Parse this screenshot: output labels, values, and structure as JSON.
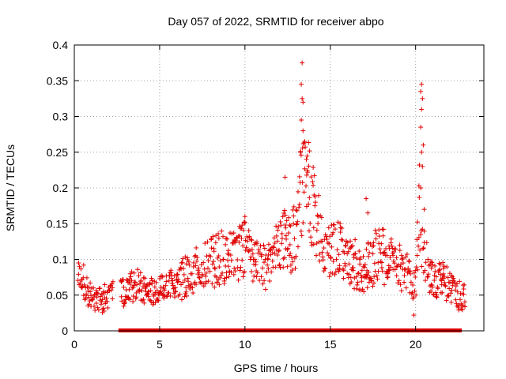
{
  "chart_data": {
    "type": "scatter",
    "title": "Day 057 of 2022, SRMTID for receiver abpo",
    "xlabel": "GPS time / hours",
    "ylabel": "SRMTID / TECUs",
    "xlim": [
      0,
      24
    ],
    "ylim": [
      0,
      0.4
    ],
    "xticks": [
      0,
      5,
      10,
      15,
      20
    ],
    "xtick_labels": [
      "0",
      "5",
      "10",
      "15",
      "20"
    ],
    "yticks": [
      0,
      0.05,
      0.1,
      0.15,
      0.2,
      0.25,
      0.3,
      0.35,
      0.4
    ],
    "ytick_labels": [
      "0",
      "0.05",
      "0.1",
      "0.15",
      "0.2",
      "0.25",
      "0.3",
      "0.35",
      "0.4"
    ],
    "grid": true,
    "legend": "none",
    "marker_color": "#e00000",
    "series": [
      {
        "name": "SRMTID",
        "marker": "plus",
        "profile_x": [
          0.1,
          0.5,
          0.8,
          1.2,
          1.6,
          2.0,
          2.5,
          3.0,
          3.5,
          4.0,
          4.5,
          5.0,
          5.5,
          6.0,
          6.5,
          7.0,
          7.5,
          8.0,
          8.5,
          9.0,
          9.5,
          10.0,
          10.5,
          11.0,
          11.5,
          12.0,
          12.5,
          13.0,
          13.3,
          13.6,
          14.0,
          14.5,
          15.0,
          15.5,
          16.0,
          16.5,
          17.0,
          17.5,
          18.0,
          18.5,
          19.0,
          19.5,
          19.8,
          20.0,
          20.2,
          20.5,
          21.0,
          21.5,
          22.0,
          22.5,
          22.9
        ],
        "profile_y": [
          0.08,
          0.07,
          0.05,
          0.045,
          0.04,
          0.05,
          0.05,
          0.055,
          0.06,
          0.06,
          0.055,
          0.06,
          0.07,
          0.06,
          0.075,
          0.08,
          0.09,
          0.1,
          0.1,
          0.1,
          0.11,
          0.12,
          0.1,
          0.09,
          0.1,
          0.13,
          0.12,
          0.13,
          0.19,
          0.22,
          0.17,
          0.13,
          0.11,
          0.12,
          0.1,
          0.09,
          0.08,
          0.1,
          0.11,
          0.1,
          0.09,
          0.08,
          0.07,
          0.06,
          0.18,
          0.1,
          0.07,
          0.07,
          0.06,
          0.05,
          0.045
        ],
        "peaks": [
          {
            "x": 13.35,
            "y": 0.375
          },
          {
            "x": 13.3,
            "y": 0.345
          },
          {
            "x": 13.35,
            "y": 0.325
          },
          {
            "x": 13.4,
            "y": 0.32
          },
          {
            "x": 13.3,
            "y": 0.295
          },
          {
            "x": 13.4,
            "y": 0.28
          },
          {
            "x": 13.5,
            "y": 0.265
          },
          {
            "x": 13.25,
            "y": 0.25
          },
          {
            "x": 13.6,
            "y": 0.24
          },
          {
            "x": 12.35,
            "y": 0.215
          },
          {
            "x": 20.35,
            "y": 0.345
          },
          {
            "x": 20.3,
            "y": 0.335
          },
          {
            "x": 20.4,
            "y": 0.325
          },
          {
            "x": 20.35,
            "y": 0.31
          },
          {
            "x": 20.3,
            "y": 0.285
          },
          {
            "x": 20.45,
            "y": 0.26
          },
          {
            "x": 20.35,
            "y": 0.25
          },
          {
            "x": 20.4,
            "y": 0.23
          },
          {
            "x": 20.3,
            "y": 0.2
          },
          {
            "x": 20.5,
            "y": 0.17
          },
          {
            "x": 17.1,
            "y": 0.185
          },
          {
            "x": 17.2,
            "y": 0.165
          },
          {
            "x": 14.05,
            "y": 0.19
          },
          {
            "x": 14.1,
            "y": 0.175
          },
          {
            "x": 10.0,
            "y": 0.16
          },
          {
            "x": 19.9,
            "y": 0.022
          },
          {
            "x": 0.25,
            "y": 0.095
          }
        ],
        "zero_band": [
          [
            2.7,
            22.6
          ]
        ],
        "gaps": [
          [
            0.0,
            0.2
          ],
          [
            2.3,
            2.7
          ],
          [
            22.9,
            24.0
          ]
        ]
      }
    ]
  }
}
